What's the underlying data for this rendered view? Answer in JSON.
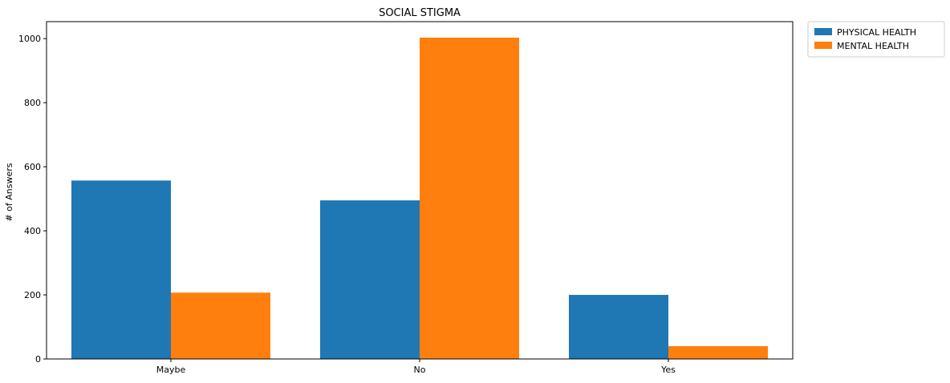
{
  "chart_data": {
    "type": "bar",
    "title": "SOCIAL STIGMA",
    "xlabel": "",
    "ylabel": "# of Answers",
    "categories": [
      "Maybe",
      "No",
      "Yes"
    ],
    "series": [
      {
        "name": "PHYSICAL HEALTH",
        "color": "#1f77b4",
        "values": [
          557,
          495,
          200
        ]
      },
      {
        "name": "MENTAL HEALTH",
        "color": "#ff7f0e",
        "values": [
          207,
          1003,
          40
        ]
      }
    ],
    "ylim": [
      0,
      1053
    ],
    "yticks": [
      0,
      200,
      400,
      600,
      800,
      1000
    ],
    "grid": false,
    "legend_position": "outside-top-right"
  }
}
